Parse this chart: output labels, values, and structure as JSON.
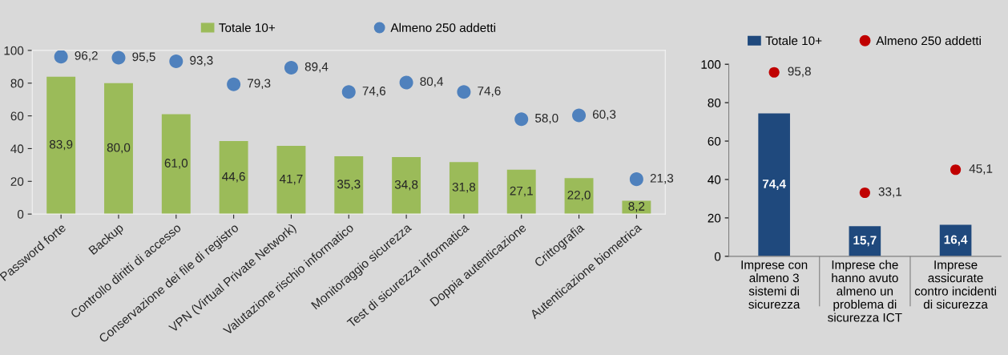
{
  "chart_data": [
    {
      "type": "bar",
      "categories": [
        "Password forte",
        "Backup",
        "Controllo diritti di accesso",
        "Conservazione dei file di registro",
        "VPN (Virtual Private Network)",
        "Valutazione rischio informatico",
        "Monitoraggio sicurezza",
        "Test di sicurezza informatica",
        "Doppia autenticazione",
        "Crittografia",
        "Autenticazione biometrica"
      ],
      "series": [
        {
          "name": "Totale 10+",
          "type": "bar",
          "color": "#9bbb59",
          "values": [
            83.9,
            80.0,
            61.0,
            44.6,
            41.7,
            35.3,
            34.8,
            31.8,
            27.1,
            22.0,
            8.2
          ],
          "value_labels": [
            "83,9",
            "80,0",
            "61,0",
            "44,6",
            "41,7",
            "35,3",
            "34,8",
            "31,8",
            "27,1",
            "22,0",
            "8,2"
          ]
        },
        {
          "name": "Almeno 250 addetti",
          "type": "scatter",
          "color": "#4f81bd",
          "marker": "circle",
          "values": [
            96.2,
            95.5,
            93.3,
            79.3,
            89.4,
            74.6,
            80.4,
            74.6,
            58.0,
            60.3,
            21.3
          ],
          "value_labels": [
            "96,2",
            "95,5",
            "93,3",
            "79,3",
            "89,4",
            "74,6",
            "80,4",
            "74,6",
            "58,0",
            "60,3",
            "21,3"
          ]
        }
      ],
      "ylim": [
        0,
        100
      ],
      "yticks": [
        0,
        20,
        40,
        60,
        80,
        100
      ],
      "grid": false,
      "legend": "top"
    },
    {
      "type": "bar",
      "categories": [
        "Imprese con\nalmeno 3\nsistemi di\nsicurezza",
        "Imprese che\nhanno avuto\nalmeno un\nproblema di\nsicurezza ICT",
        "Imprese\nassicurate\ncontro incidenti\ndi sicurezza"
      ],
      "series": [
        {
          "name": "Totale 10+",
          "type": "bar",
          "color": "#1f497d",
          "values": [
            74.4,
            15.7,
            16.4
          ],
          "value_labels": [
            "74,4",
            "15,7",
            "16,4"
          ]
        },
        {
          "name": "Almeno 250 addetti",
          "type": "scatter",
          "color": "#c00000",
          "marker": "circle",
          "values": [
            95.8,
            33.1,
            45.1
          ],
          "value_labels": [
            "95,8",
            "33,1",
            "45,1"
          ]
        }
      ],
      "ylim": [
        0,
        100
      ],
      "yticks": [
        0,
        20,
        40,
        60,
        80,
        100
      ],
      "grid": false,
      "legend": "top"
    }
  ]
}
